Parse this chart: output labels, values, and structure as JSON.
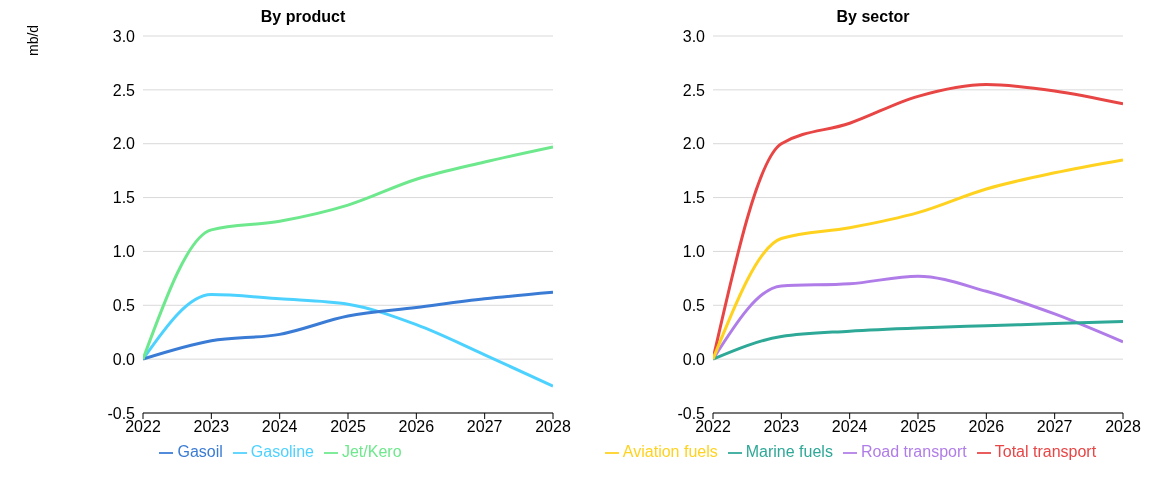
{
  "chart_data": [
    {
      "type": "line",
      "title": "By product",
      "ylabel": "mb/d",
      "x": [
        2022,
        2023,
        2024,
        2025,
        2026,
        2027,
        2028
      ],
      "xlim": [
        2022,
        2028
      ],
      "xticks": [
        2022,
        2023,
        2024,
        2025,
        2026,
        2027,
        2028
      ],
      "ylim": [
        -0.5,
        3
      ],
      "yticks": [
        {
          "value": -0.5,
          "label": "-0.5"
        },
        {
          "value": 0,
          "label": "0.0"
        },
        {
          "value": 0.5,
          "label": "0.5"
        },
        {
          "value": 1,
          "label": "1.0"
        },
        {
          "value": 1.5,
          "label": "1.5"
        },
        {
          "value": 2,
          "label": "2.0"
        },
        {
          "value": 2.5,
          "label": "2.5"
        },
        {
          "value": 3,
          "label": "3.0"
        }
      ],
      "grid": "y",
      "legend": "bottom",
      "marker": "none",
      "series": [
        {
          "name": "Gasoline",
          "color": "#4dd2ff",
          "values": [
            0,
            0.6,
            0.56,
            0.51,
            0.32,
            0.04,
            -0.25
          ]
        },
        {
          "name": "Gasoil",
          "color": "#3a7bd5",
          "values": [
            0,
            0.17,
            0.23,
            0.4,
            0.48,
            0.56,
            0.62
          ]
        },
        {
          "name": "Jet/Kero",
          "color": "#6ee88c",
          "values": [
            0,
            1.2,
            1.28,
            1.43,
            1.67,
            1.83,
            1.97
          ]
        }
      ]
    },
    {
      "type": "line",
      "title": "By sector",
      "x": [
        2022,
        2023,
        2024,
        2025,
        2026,
        2027,
        2028
      ],
      "xlim": [
        2022,
        2028
      ],
      "xticks": [
        2022,
        2023,
        2024,
        2025,
        2026,
        2027,
        2028
      ],
      "ylim": [
        -0.5,
        3
      ],
      "yticks": [
        {
          "value": -0.5,
          "label": "-0.5"
        },
        {
          "value": 0,
          "label": "0.0"
        },
        {
          "value": 0.5,
          "label": "0.5"
        },
        {
          "value": 1,
          "label": "1.0"
        },
        {
          "value": 1.5,
          "label": "1.5"
        },
        {
          "value": 2,
          "label": "2.0"
        },
        {
          "value": 2.5,
          "label": "2.5"
        },
        {
          "value": 3,
          "label": "3.0"
        }
      ],
      "grid": "y",
      "legend": "bottom",
      "marker": "none",
      "series": [
        {
          "name": "Total transport",
          "color": "#e84545",
          "values": [
            0,
            2.0,
            2.19,
            2.44,
            2.55,
            2.49,
            2.37
          ]
        },
        {
          "name": "Road transport",
          "color": "#b07de8",
          "values": [
            0,
            0.68,
            0.7,
            0.77,
            0.63,
            0.42,
            0.16
          ]
        },
        {
          "name": "Marine fuels",
          "color": "#2ea897",
          "values": [
            0,
            0.21,
            0.26,
            0.29,
            0.31,
            0.33,
            0.35
          ]
        },
        {
          "name": "Aviation fuels",
          "color": "#ffd21f",
          "values": [
            0,
            1.12,
            1.22,
            1.36,
            1.58,
            1.73,
            1.85
          ]
        }
      ]
    }
  ]
}
